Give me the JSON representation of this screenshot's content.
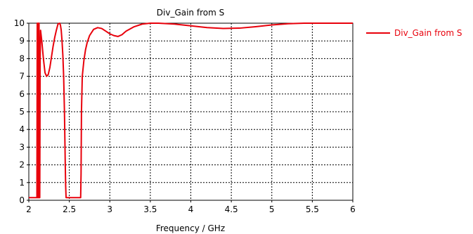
{
  "chart_data": {
    "type": "line",
    "title": "Div_Gain from S",
    "xlabel": "Frequency / GHz",
    "ylabel": "",
    "xlim": [
      2,
      6
    ],
    "ylim": [
      0,
      10
    ],
    "xticks": [
      2,
      2.5,
      3,
      3.5,
      4,
      4.5,
      5,
      5.5,
      6
    ],
    "xtick_labels": [
      "2",
      "2.5",
      "3",
      "3.5",
      "4",
      "4.5",
      "5",
      "5.5",
      "6"
    ],
    "yticks": [
      0,
      1,
      2,
      3,
      4,
      5,
      6,
      7,
      8,
      9,
      10
    ],
    "ytick_labels": [
      "0",
      "1",
      "2",
      "3",
      "4",
      "5",
      "6",
      "7",
      "8",
      "9",
      "10"
    ],
    "grid": true,
    "legend_position": "right",
    "series": [
      {
        "name": "Div_Gain from S",
        "color": "#e8000b",
        "x": [
          2.0,
          2.1,
          2.104,
          2.11,
          2.116,
          2.12,
          2.124,
          2.126,
          2.13,
          2.135,
          2.14,
          2.145,
          2.15,
          2.16,
          2.18,
          2.2,
          2.22,
          2.24,
          2.26,
          2.28,
          2.3,
          2.32,
          2.34,
          2.36,
          2.38,
          2.39,
          2.4,
          2.41,
          2.42,
          2.43,
          2.44,
          2.45,
          2.455,
          2.46,
          2.5,
          2.55,
          2.6,
          2.64,
          2.645,
          2.65,
          2.66,
          2.68,
          2.7,
          2.72,
          2.75,
          2.8,
          2.85,
          2.9,
          2.95,
          3.0,
          3.05,
          3.1,
          3.15,
          3.2,
          3.3,
          3.4,
          3.5,
          3.6,
          3.8,
          4.0,
          4.2,
          4.4,
          4.6,
          4.8,
          5.0,
          5.2,
          5.4,
          5.6,
          5.8,
          6.0
        ],
        "y": [
          0.15,
          0.15,
          10.0,
          0.15,
          10.0,
          0.15,
          0.15,
          10.0,
          0.15,
          0.15,
          8.0,
          9.6,
          9.4,
          9.0,
          8.0,
          7.2,
          7.0,
          7.1,
          7.5,
          8.1,
          8.7,
          9.2,
          9.6,
          9.95,
          10.0,
          9.9,
          9.6,
          9.0,
          8.2,
          7.0,
          5.0,
          2.0,
          0.8,
          0.15,
          0.15,
          0.15,
          0.15,
          0.15,
          1.5,
          5.0,
          7.0,
          7.9,
          8.5,
          8.9,
          9.3,
          9.65,
          9.75,
          9.7,
          9.55,
          9.4,
          9.3,
          9.25,
          9.35,
          9.55,
          9.8,
          9.95,
          10.0,
          10.0,
          9.95,
          9.85,
          9.75,
          9.7,
          9.72,
          9.8,
          9.9,
          9.97,
          10.0,
          10.0,
          10.0,
          10.0
        ]
      }
    ]
  }
}
